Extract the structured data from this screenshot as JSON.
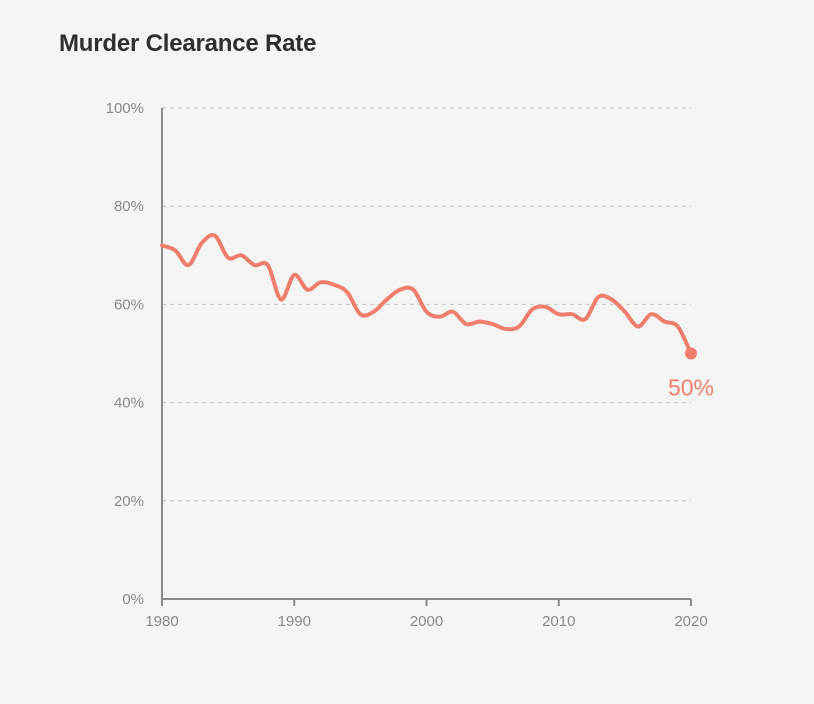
{
  "chart_data": {
    "type": "line",
    "title": "Murder Clearance Rate",
    "xlabel": "",
    "ylabel": "",
    "xlim": [
      1980,
      2020
    ],
    "ylim": [
      0,
      100
    ],
    "x_ticks": [
      1980,
      1990,
      2000,
      2010,
      2020
    ],
    "x_tick_labels": [
      "1980",
      "1990",
      "2000",
      "2010",
      "2020"
    ],
    "y_ticks": [
      0,
      20,
      40,
      60,
      80,
      100
    ],
    "y_tick_labels": [
      "0%",
      "20%",
      "40%",
      "60%",
      "80%",
      "100%"
    ],
    "grid": "horizontal dashed",
    "line_color": "#f07e6e",
    "series": [
      {
        "x": [
          1980,
          1981,
          1982,
          1983,
          1984,
          1985,
          1986,
          1987,
          1988,
          1989,
          1990,
          1991,
          1992,
          1993,
          1994,
          1995,
          1996,
          1997,
          1998,
          1999,
          2000,
          2001,
          2002,
          2003,
          2004,
          2005,
          2006,
          2007,
          2008,
          2009,
          2010,
          2011,
          2012,
          2013,
          2014,
          2015,
          2016,
          2017,
          2018,
          2019,
          2020
        ],
        "values": [
          72,
          71,
          68,
          72.5,
          74,
          69.5,
          70,
          68,
          68,
          61,
          66,
          63,
          64.5,
          64,
          62.5,
          58,
          58.5,
          61,
          63,
          63,
          58.5,
          57.5,
          58.5,
          56,
          56.5,
          56,
          55,
          55.5,
          59,
          59.5,
          58,
          58,
          57,
          61.5,
          61,
          58.5,
          55.5,
          58,
          56.5,
          55.5,
          50
        ]
      }
    ],
    "annotations": [
      {
        "x": 2020,
        "y": 50,
        "text": "50%"
      }
    ]
  }
}
